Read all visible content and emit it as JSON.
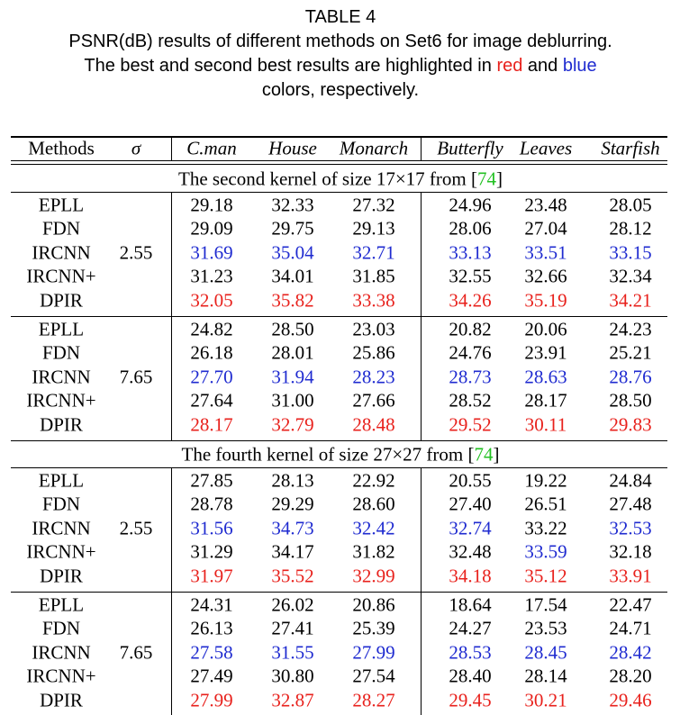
{
  "title": "TABLE 4",
  "caption": [
    [
      {
        "text": "PSNR(dB) results of different methods on Set6 for image deblurring."
      }
    ],
    [
      {
        "text": "The best and second best results are highlighted in "
      },
      {
        "text": "red",
        "color": "#e8211c"
      },
      {
        "text": " and "
      },
      {
        "text": "blue",
        "color": "#1f2bd0"
      }
    ],
    [
      {
        "text": "colors, respectively."
      }
    ]
  ],
  "table": {
    "header": {
      "methods": "Methods",
      "sigma": "σ",
      "columns": [
        "C.man",
        "House",
        "Monarch",
        "Butterfly",
        "Leaves",
        "Starfish"
      ]
    },
    "sections": [
      {
        "heading": [
          {
            "text": "The second kernel of size 17×17 from ["
          },
          {
            "text": "74",
            "color": "#22c022"
          },
          {
            "text": "]"
          }
        ],
        "groups": [
          {
            "sigma": "2.55",
            "rows": [
              {
                "method": "EPLL",
                "cells": [
                  {
                    "text": "29.18"
                  },
                  {
                    "text": "32.33"
                  },
                  {
                    "text": "27.32"
                  },
                  {
                    "text": "24.96"
                  },
                  {
                    "text": "23.48"
                  },
                  {
                    "text": "28.05"
                  }
                ]
              },
              {
                "method": "FDN",
                "cells": [
                  {
                    "text": "29.09"
                  },
                  {
                    "text": "29.75"
                  },
                  {
                    "text": "29.13"
                  },
                  {
                    "text": "28.06"
                  },
                  {
                    "text": "27.04"
                  },
                  {
                    "text": "28.12"
                  }
                ]
              },
              {
                "method": "IRCNN",
                "cells": [
                  {
                    "text": "31.69",
                    "color": "#1f2bd0"
                  },
                  {
                    "text": "35.04",
                    "color": "#1f2bd0"
                  },
                  {
                    "text": "32.71",
                    "color": "#1f2bd0"
                  },
                  {
                    "text": "33.13",
                    "color": "#1f2bd0"
                  },
                  {
                    "text": "33.51",
                    "color": "#1f2bd0"
                  },
                  {
                    "text": "33.15",
                    "color": "#1f2bd0"
                  }
                ]
              },
              {
                "method": "IRCNN+",
                "cells": [
                  {
                    "text": "31.23"
                  },
                  {
                    "text": "34.01"
                  },
                  {
                    "text": "31.85"
                  },
                  {
                    "text": "32.55"
                  },
                  {
                    "text": "32.66"
                  },
                  {
                    "text": "32.34"
                  }
                ]
              },
              {
                "method": "DPIR",
                "cells": [
                  {
                    "text": "32.05",
                    "color": "#e8211c"
                  },
                  {
                    "text": "35.82",
                    "color": "#e8211c"
                  },
                  {
                    "text": "33.38",
                    "color": "#e8211c"
                  },
                  {
                    "text": "34.26",
                    "color": "#e8211c"
                  },
                  {
                    "text": "35.19",
                    "color": "#e8211c"
                  },
                  {
                    "text": "34.21",
                    "color": "#e8211c"
                  }
                ]
              }
            ]
          },
          {
            "sigma": "7.65",
            "rows": [
              {
                "method": "EPLL",
                "cells": [
                  {
                    "text": "24.82"
                  },
                  {
                    "text": "28.50"
                  },
                  {
                    "text": "23.03"
                  },
                  {
                    "text": "20.82"
                  },
                  {
                    "text": "20.06"
                  },
                  {
                    "text": "24.23"
                  }
                ]
              },
              {
                "method": "FDN",
                "cells": [
                  {
                    "text": "26.18"
                  },
                  {
                    "text": "28.01"
                  },
                  {
                    "text": "25.86"
                  },
                  {
                    "text": "24.76"
                  },
                  {
                    "text": "23.91"
                  },
                  {
                    "text": "25.21"
                  }
                ]
              },
              {
                "method": "IRCNN",
                "cells": [
                  {
                    "text": "27.70",
                    "color": "#1f2bd0"
                  },
                  {
                    "text": "31.94",
                    "color": "#1f2bd0"
                  },
                  {
                    "text": "28.23",
                    "color": "#1f2bd0"
                  },
                  {
                    "text": "28.73",
                    "color": "#1f2bd0"
                  },
                  {
                    "text": "28.63",
                    "color": "#1f2bd0"
                  },
                  {
                    "text": "28.76",
                    "color": "#1f2bd0"
                  }
                ]
              },
              {
                "method": "IRCNN+",
                "cells": [
                  {
                    "text": "27.64"
                  },
                  {
                    "text": "31.00"
                  },
                  {
                    "text": "27.66"
                  },
                  {
                    "text": "28.52"
                  },
                  {
                    "text": "28.17"
                  },
                  {
                    "text": "28.50"
                  }
                ]
              },
              {
                "method": "DPIR",
                "cells": [
                  {
                    "text": "28.17",
                    "color": "#e8211c"
                  },
                  {
                    "text": "32.79",
                    "color": "#e8211c"
                  },
                  {
                    "text": "28.48",
                    "color": "#e8211c"
                  },
                  {
                    "text": "29.52",
                    "color": "#e8211c"
                  },
                  {
                    "text": "30.11",
                    "color": "#e8211c"
                  },
                  {
                    "text": "29.83",
                    "color": "#e8211c"
                  }
                ]
              }
            ]
          }
        ]
      },
      {
        "heading": [
          {
            "text": "The fourth kernel of size 27×27 from ["
          },
          {
            "text": "74",
            "color": "#22c022"
          },
          {
            "text": "]"
          }
        ],
        "groups": [
          {
            "sigma": "2.55",
            "rows": [
              {
                "method": "EPLL",
                "cells": [
                  {
                    "text": "27.85"
                  },
                  {
                    "text": "28.13"
                  },
                  {
                    "text": "22.92"
                  },
                  {
                    "text": "20.55"
                  },
                  {
                    "text": "19.22"
                  },
                  {
                    "text": "24.84"
                  }
                ]
              },
              {
                "method": "FDN",
                "cells": [
                  {
                    "text": "28.78"
                  },
                  {
                    "text": "29.29"
                  },
                  {
                    "text": "28.60"
                  },
                  {
                    "text": "27.40"
                  },
                  {
                    "text": "26.51"
                  },
                  {
                    "text": "27.48"
                  }
                ]
              },
              {
                "method": "IRCNN",
                "cells": [
                  {
                    "text": "31.56",
                    "color": "#1f2bd0"
                  },
                  {
                    "text": "34.73",
                    "color": "#1f2bd0"
                  },
                  {
                    "text": "32.42",
                    "color": "#1f2bd0"
                  },
                  {
                    "text": "32.74",
                    "color": "#1f2bd0"
                  },
                  {
                    "text": "33.22"
                  },
                  {
                    "text": "32.53",
                    "color": "#1f2bd0"
                  }
                ]
              },
              {
                "method": "IRCNN+",
                "cells": [
                  {
                    "text": "31.29"
                  },
                  {
                    "text": "34.17"
                  },
                  {
                    "text": "31.82"
                  },
                  {
                    "text": "32.48"
                  },
                  {
                    "text": "33.59",
                    "color": "#1f2bd0"
                  },
                  {
                    "text": "32.18"
                  }
                ]
              },
              {
                "method": "DPIR",
                "cells": [
                  {
                    "text": "31.97",
                    "color": "#e8211c"
                  },
                  {
                    "text": "35.52",
                    "color": "#e8211c"
                  },
                  {
                    "text": "32.99",
                    "color": "#e8211c"
                  },
                  {
                    "text": "34.18",
                    "color": "#e8211c"
                  },
                  {
                    "text": "35.12",
                    "color": "#e8211c"
                  },
                  {
                    "text": "33.91",
                    "color": "#e8211c"
                  }
                ]
              }
            ]
          },
          {
            "sigma": "7.65",
            "rows": [
              {
                "method": "EPLL",
                "cells": [
                  {
                    "text": "24.31"
                  },
                  {
                    "text": "26.02"
                  },
                  {
                    "text": "20.86"
                  },
                  {
                    "text": "18.64"
                  },
                  {
                    "text": "17.54"
                  },
                  {
                    "text": "22.47"
                  }
                ]
              },
              {
                "method": "FDN",
                "cells": [
                  {
                    "text": "26.13"
                  },
                  {
                    "text": "27.41"
                  },
                  {
                    "text": "25.39"
                  },
                  {
                    "text": "24.27"
                  },
                  {
                    "text": "23.53"
                  },
                  {
                    "text": "24.71"
                  }
                ]
              },
              {
                "method": "IRCNN",
                "cells": [
                  {
                    "text": "27.58",
                    "color": "#1f2bd0"
                  },
                  {
                    "text": "31.55",
                    "color": "#1f2bd0"
                  },
                  {
                    "text": "27.99",
                    "color": "#1f2bd0"
                  },
                  {
                    "text": "28.53",
                    "color": "#1f2bd0"
                  },
                  {
                    "text": "28.45",
                    "color": "#1f2bd0"
                  },
                  {
                    "text": "28.42",
                    "color": "#1f2bd0"
                  }
                ]
              },
              {
                "method": "IRCNN+",
                "cells": [
                  {
                    "text": "27.49"
                  },
                  {
                    "text": "30.80"
                  },
                  {
                    "text": "27.54"
                  },
                  {
                    "text": "28.40"
                  },
                  {
                    "text": "28.14"
                  },
                  {
                    "text": "28.20"
                  }
                ]
              },
              {
                "method": "DPIR",
                "cells": [
                  {
                    "text": "27.99",
                    "color": "#e8211c"
                  },
                  {
                    "text": "32.87",
                    "color": "#e8211c"
                  },
                  {
                    "text": "28.27",
                    "color": "#e8211c"
                  },
                  {
                    "text": "29.45",
                    "color": "#e8211c"
                  },
                  {
                    "text": "30.21",
                    "color": "#e8211c"
                  },
                  {
                    "text": "29.46",
                    "color": "#e8211c"
                  }
                ]
              }
            ]
          }
        ]
      }
    ]
  }
}
